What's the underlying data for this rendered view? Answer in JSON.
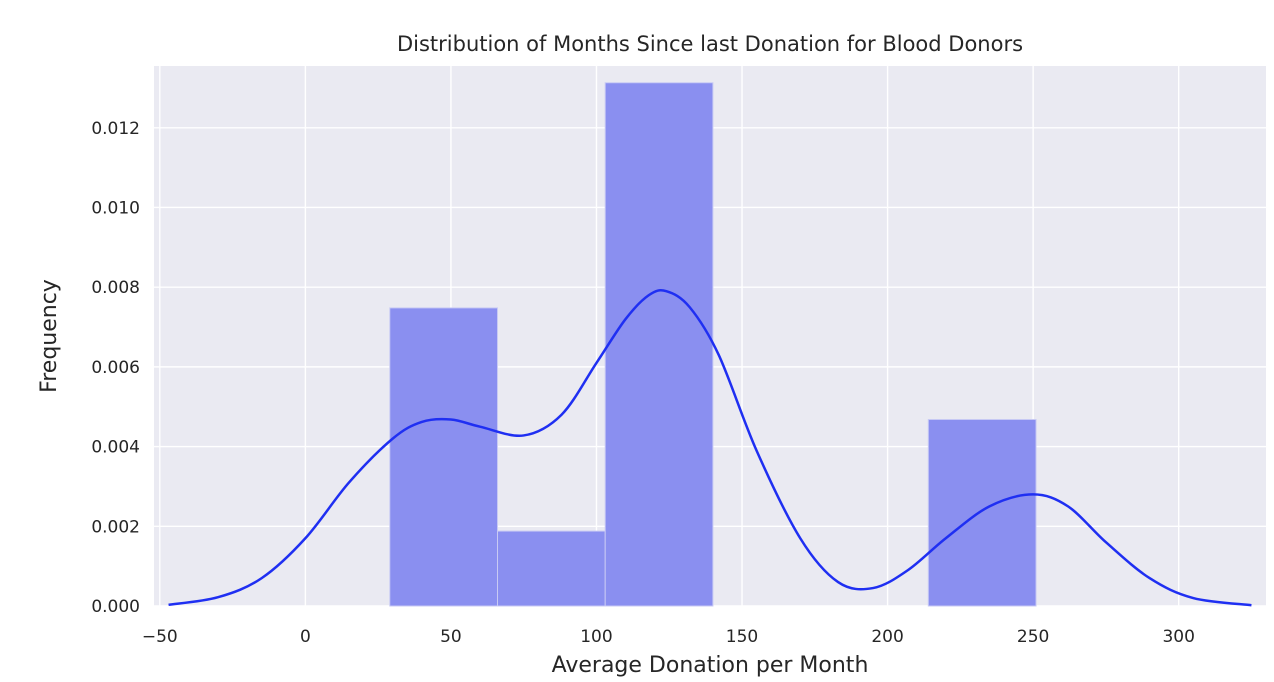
{
  "chart_data": {
    "type": "histogram",
    "title": "Distribution of Months Since last Donation for Blood Donors",
    "xlabel": "Average Donation per Month",
    "ylabel": "Frequency",
    "xlim": [
      -52,
      330
    ],
    "ylim": [
      0,
      0.01355
    ],
    "x_ticks": [
      -50,
      0,
      50,
      100,
      150,
      200,
      250,
      300
    ],
    "x_tick_labels": [
      "−50",
      "0",
      "50",
      "100",
      "150",
      "200",
      "250",
      "300"
    ],
    "y_ticks": [
      0.0,
      0.002,
      0.004,
      0.006,
      0.008,
      0.01,
      0.012
    ],
    "y_tick_labels": [
      "0.000",
      "0.002",
      "0.004",
      "0.006",
      "0.008",
      "0.010",
      "0.012"
    ],
    "grid": true,
    "bins": [
      {
        "x0": 29,
        "x1": 66,
        "value": 0.00748
      },
      {
        "x0": 66,
        "x1": 103,
        "value": 0.00188
      },
      {
        "x0": 103,
        "x1": 140,
        "value": 0.01313
      },
      {
        "x0": 140,
        "x1": 177,
        "value": 0
      },
      {
        "x0": 177,
        "x1": 214,
        "value": 0
      },
      {
        "x0": 214,
        "x1": 251,
        "value": 0.00468
      }
    ],
    "kde": {
      "x": [
        -47,
        -30,
        -15,
        0,
        15,
        30,
        40,
        50,
        60,
        75,
        88,
        100,
        110,
        118,
        124,
        132,
        142,
        155,
        170,
        183,
        195,
        207,
        220,
        235,
        250,
        262,
        275,
        290,
        305,
        325
      ],
      "y": [
        3e-05,
        0.00022,
        0.0007,
        0.0017,
        0.0031,
        0.0042,
        0.00462,
        0.00468,
        0.0045,
        0.00428,
        0.0048,
        0.0061,
        0.0072,
        0.0078,
        0.0079,
        0.0075,
        0.0063,
        0.0039,
        0.0017,
        0.0006,
        0.00045,
        0.0009,
        0.0017,
        0.0025,
        0.0028,
        0.0025,
        0.0016,
        0.0007,
        0.0002,
        2e-05
      ]
    },
    "colors": {
      "background": "#eaeaf2",
      "bar": "#8a8ff0",
      "bar_edge": "#c8caf4",
      "kde_line": "#1f2ff2"
    }
  }
}
